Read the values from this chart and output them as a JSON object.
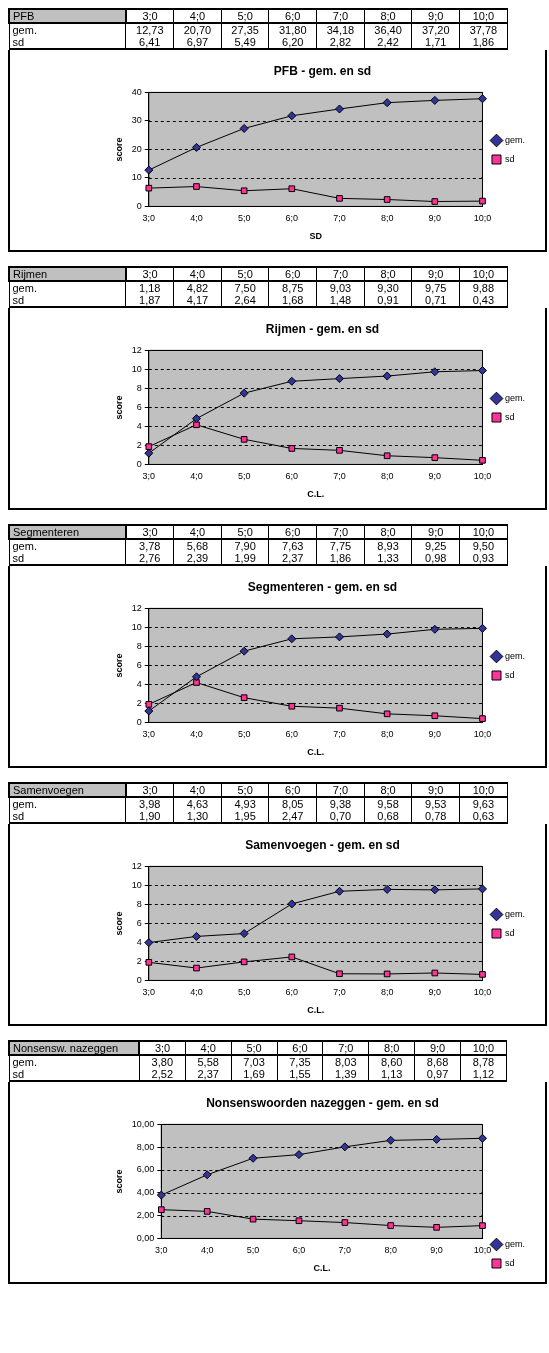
{
  "chart_data": [
    {
      "type": "line",
      "title": "PFB - gem. en sd",
      "xlabel": "SD",
      "ylabel": "score",
      "annotations": [
        "PFB"
      ],
      "categories": [
        "3;0",
        "4;0",
        "5;0",
        "6;0",
        "7;0",
        "8;0",
        "9;0",
        "10;0"
      ],
      "ylim": [
        0,
        40
      ],
      "yticks": [
        0,
        10,
        20,
        30,
        40
      ],
      "grid": "y",
      "legend": "right",
      "series": [
        {
          "name": "gem.",
          "color": "#333399",
          "marker": "diamond",
          "values": [
            12.73,
            20.7,
            27.35,
            31.8,
            34.18,
            36.4,
            37.2,
            37.78
          ],
          "value_labels": [
            "12,73",
            "20,70",
            "27,35",
            "31,80",
            "34,18",
            "36,40",
            "37,20",
            "37,78"
          ]
        },
        {
          "name": "sd",
          "color": "#ff3399",
          "marker": "square",
          "values": [
            6.41,
            6.97,
            5.49,
            6.2,
            2.82,
            2.42,
            1.71,
            1.86
          ],
          "value_labels": [
            "6,41",
            "6,97",
            "5,49",
            "6,20",
            "2,82",
            "2,42",
            "1,71",
            "1,86"
          ]
        }
      ]
    },
    {
      "type": "line",
      "title": "Rijmen - gem. en sd",
      "xlabel": "C.L.",
      "ylabel": "score",
      "annotations": [
        "Rijmen"
      ],
      "categories": [
        "3;0",
        "4;0",
        "5;0",
        "6;0",
        "7;0",
        "8;0",
        "9;0",
        "10;0"
      ],
      "ylim": [
        0,
        12
      ],
      "yticks": [
        0,
        2,
        4,
        6,
        8,
        10,
        12
      ],
      "grid": "y",
      "legend": "right",
      "series": [
        {
          "name": "gem.",
          "color": "#333399",
          "marker": "diamond",
          "values": [
            1.18,
            4.82,
            7.5,
            8.75,
            9.03,
            9.3,
            9.75,
            9.88
          ],
          "value_labels": [
            "1,18",
            "4,82",
            "7,50",
            "8,75",
            "9,03",
            "9,30",
            "9,75",
            "9,88"
          ]
        },
        {
          "name": "sd",
          "color": "#ff3399",
          "marker": "square",
          "values": [
            1.87,
            4.17,
            2.64,
            1.68,
            1.48,
            0.91,
            0.71,
            0.43
          ],
          "value_labels": [
            "1,87",
            "4,17",
            "2,64",
            "1,68",
            "1,48",
            "0,91",
            "0,71",
            "0,43"
          ]
        }
      ]
    },
    {
      "type": "line",
      "title": "Segmenteren - gem. en sd",
      "xlabel": "C.L.",
      "ylabel": "score",
      "annotations": [
        "Segmenteren",
        "3,78",
        "5,68",
        "7,90",
        "7,63",
        "7,75",
        "8,93",
        "9,25",
        "9,50",
        "2,76",
        "2,39",
        "1,99",
        "2,37",
        "1,86",
        "1,33",
        "0,98",
        "0,93"
      ],
      "categories": [
        "3;0",
        "4;0",
        "5;0",
        "6;0",
        "7;0",
        "8;0",
        "9;0",
        "10;0"
      ],
      "ylim": [
        0,
        12
      ],
      "yticks": [
        0,
        2,
        4,
        6,
        8,
        10,
        12
      ],
      "grid": "y",
      "legend": "right",
      "series": [
        {
          "name": "gem.",
          "color": "#333399",
          "marker": "diamond",
          "values": [
            1.2,
            4.8,
            7.5,
            8.8,
            9.0,
            9.3,
            9.8,
            9.9
          ]
        },
        {
          "name": "sd",
          "color": "#ff3399",
          "marker": "square",
          "values": [
            1.9,
            4.2,
            2.6,
            1.7,
            1.5,
            0.9,
            0.7,
            0.4
          ]
        }
      ]
    },
    {
      "type": "line",
      "title": "Samenvoegen - gem. en sd",
      "xlabel": "C.L.",
      "ylabel": "score",
      "annotations": [
        "Samenvoegen"
      ],
      "categories": [
        "3;0",
        "4;0",
        "5;0",
        "6;0",
        "7;0",
        "8;0",
        "9;0",
        "10;0"
      ],
      "ylim": [
        0,
        12
      ],
      "yticks": [
        0,
        2,
        4,
        6,
        8,
        10,
        12
      ],
      "grid": "y",
      "legend": "right",
      "series": [
        {
          "name": "gem.",
          "color": "#333399",
          "marker": "diamond",
          "values": [
            3.98,
            4.63,
            4.93,
            8.05,
            9.38,
            9.58,
            9.53,
            9.63
          ],
          "value_labels": [
            "3,98",
            "4,63",
            "4,93",
            "8,05",
            "9,38",
            "9,58",
            "9,53",
            "9,63"
          ]
        },
        {
          "name": "sd",
          "color": "#ff3399",
          "marker": "square",
          "values": [
            1.9,
            1.3,
            1.95,
            2.47,
            0.7,
            0.68,
            0.78,
            0.63
          ],
          "value_labels": [
            "1,90",
            "1,30",
            "1,95",
            "2,47",
            "0,70",
            "0,68",
            "0,78",
            "0,63"
          ]
        }
      ]
    },
    {
      "type": "line",
      "title": "Nonsenswoorden nazeggen - gem. en sd",
      "xlabel": "C.L.",
      "ylabel": "score",
      "annotations": [
        "Nonsensw. nazeggen"
      ],
      "categories": [
        "3;0",
        "4;0",
        "5;0",
        "6;0",
        "7;0",
        "8;0",
        "9;0",
        "10;0"
      ],
      "ylim": [
        0,
        10
      ],
      "yticks": [
        {
          "value": 0,
          "label": "0,00"
        },
        {
          "value": 2,
          "label": "2,00"
        },
        {
          "value": 4,
          "label": "4,00"
        },
        {
          "value": 6,
          "label": "6,00"
        },
        {
          "value": 8,
          "label": "8,00"
        },
        {
          "value": 10,
          "label": "10,00"
        }
      ],
      "grid": "y",
      "legend": "bottom right",
      "series": [
        {
          "name": "gem.",
          "color": "#333399",
          "marker": "diamond",
          "values": [
            3.8,
            5.58,
            7.03,
            7.35,
            8.03,
            8.6,
            8.68,
            8.78
          ],
          "value_labels": [
            "3,80",
            "5,58",
            "7,03",
            "7,35",
            "8,03",
            "8,60",
            "8,68",
            "8,78"
          ]
        },
        {
          "name": "sd",
          "color": "#ff3399",
          "marker": "square",
          "values": [
            2.52,
            2.37,
            1.69,
            1.55,
            1.39,
            1.13,
            0.97,
            1.12
          ],
          "value_labels": [
            "2,52",
            "2,37",
            "1,69",
            "1,55",
            "1,39",
            "1,13",
            "0,97",
            "1,12"
          ]
        }
      ]
    }
  ]
}
